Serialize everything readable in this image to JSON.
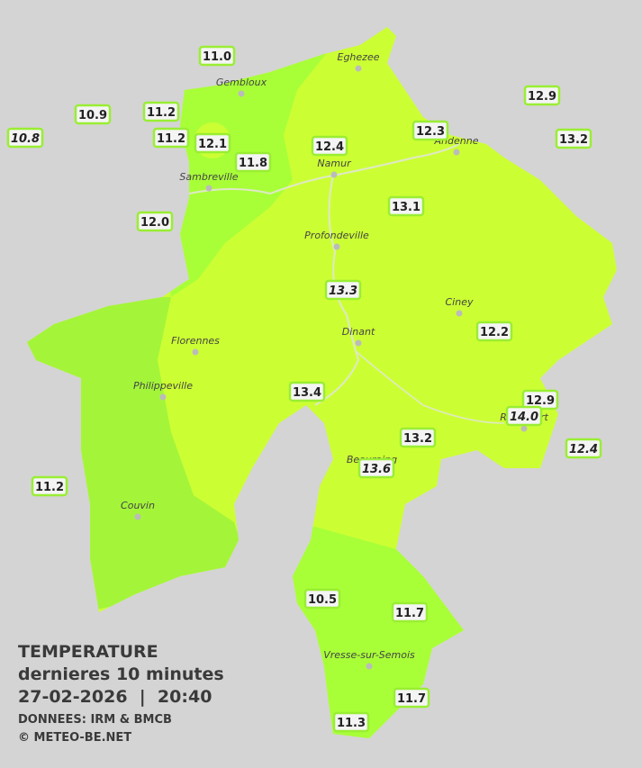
{
  "stations": [
    {
      "value": "11.0",
      "italic": false
    },
    {
      "value": "10.9",
      "italic": false
    },
    {
      "value": "11.2",
      "italic": false
    },
    {
      "value": "10.8",
      "italic": true
    },
    {
      "value": "11.2",
      "italic": false
    },
    {
      "value": "12.1",
      "italic": false
    },
    {
      "value": "11.8",
      "italic": false
    },
    {
      "value": "12.4",
      "italic": false
    },
    {
      "value": "12.3",
      "italic": false
    },
    {
      "value": "12.9",
      "italic": false
    },
    {
      "value": "13.2",
      "italic": false
    },
    {
      "value": "13.1",
      "italic": false
    },
    {
      "value": "12.0",
      "italic": false
    },
    {
      "value": "13.3",
      "italic": true
    },
    {
      "value": "12.2",
      "italic": false
    },
    {
      "value": "13.4",
      "italic": false
    },
    {
      "value": "12.9",
      "italic": false
    },
    {
      "value": "13.2",
      "italic": false
    },
    {
      "value": "12.4",
      "italic": true
    },
    {
      "value": "13.6",
      "italic": true
    },
    {
      "value": "11.2",
      "italic": false
    },
    {
      "value": "10.5",
      "italic": false
    },
    {
      "value": "11.7",
      "italic": false
    },
    {
      "value": "11.7",
      "italic": false
    },
    {
      "value": "11.3",
      "italic": false
    },
    {
      "value": "14.0",
      "italic": true
    }
  ],
  "places": [
    "Eghezee",
    "Gembloux",
    "Andenne",
    "Namur",
    "Sambreville",
    "Profondeville",
    "Ciney",
    "Dinant",
    "Florennes",
    "Philippeville",
    "Rochefort",
    "Beauraing",
    "Couvin",
    "Vresse-sur-Semois"
  ],
  "caption": {
    "title": "TEMPERATURE",
    "subtitle": "dernieres 10 minutes",
    "datetime": "27-02-2026  |  20:40",
    "source": "DONNEES: IRM & BMCB",
    "copyright": "© METEO-BE.NET"
  }
}
